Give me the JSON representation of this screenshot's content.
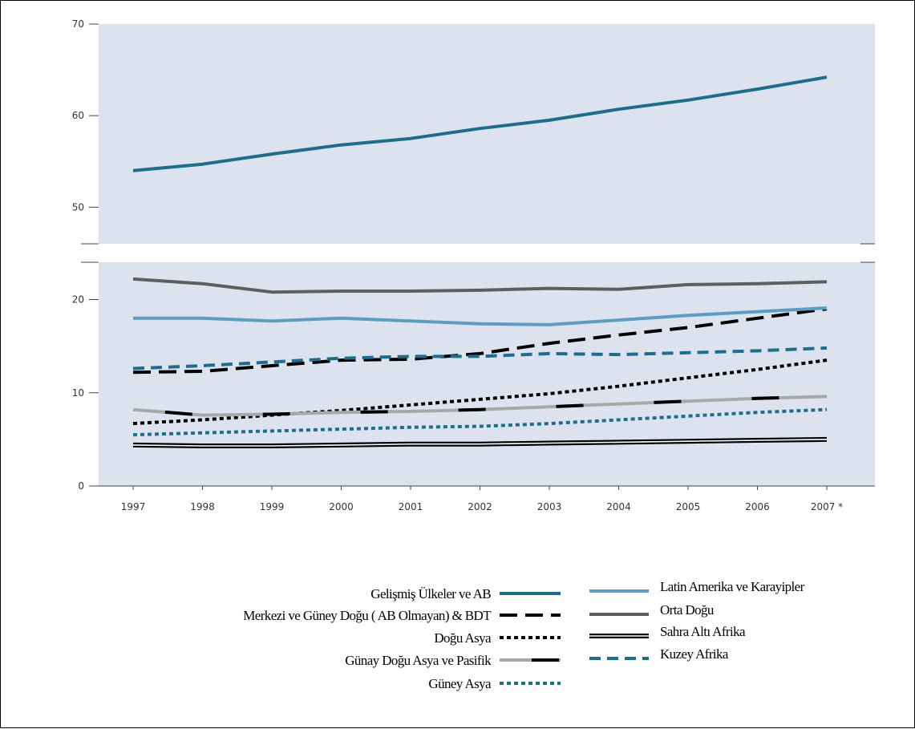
{
  "chart_data": {
    "type": "line",
    "x": [
      "1997",
      "1998",
      "1999",
      "2000",
      "2001",
      "2002",
      "2003",
      "2004",
      "2005",
      "2006",
      "2007 *"
    ],
    "yticks": [
      0,
      10,
      20,
      50,
      60,
      70
    ],
    "ylim_lower": [
      0,
      24
    ],
    "ylim_upper": [
      46,
      70
    ],
    "axis_break": true,
    "grid": false,
    "background": "#dde3ee",
    "legend_position": "bottom",
    "series": [
      {
        "name": "Gelişmiş Ülkeler ve AB",
        "color": "#1b6e8c",
        "style": "solid",
        "values": [
          54.0,
          54.7,
          55.8,
          56.8,
          57.5,
          58.6,
          59.5,
          60.7,
          61.7,
          62.9,
          64.2
        ]
      },
      {
        "name": "Merkezi ve Güney Doğu ( AB Olmayan) & BDT",
        "color": "#000000",
        "style": "long-dash",
        "values": [
          12.2,
          12.3,
          12.9,
          13.5,
          13.6,
          14.2,
          15.3,
          16.2,
          17.0,
          18.0,
          19.0
        ]
      },
      {
        "name": "Doğu Asya",
        "color": "#000000",
        "style": "dotted",
        "values": [
          6.7,
          7.1,
          7.6,
          8.1,
          8.7,
          9.3,
          9.9,
          10.7,
          11.6,
          12.5,
          13.5
        ]
      },
      {
        "name": "Günay Doğu Asya ve Pasifik",
        "color": "#a8a8a8",
        "style": "gray-black-segment",
        "values": [
          8.2,
          7.6,
          7.7,
          7.9,
          8.0,
          8.2,
          8.5,
          8.8,
          9.1,
          9.4,
          9.6
        ]
      },
      {
        "name": "Güney Asya",
        "color": "#1b6e8c",
        "style": "dotted",
        "values": [
          5.5,
          5.7,
          5.9,
          6.1,
          6.3,
          6.4,
          6.7,
          7.1,
          7.5,
          7.9,
          8.2
        ]
      },
      {
        "name": "Latin Amerika ve Karayipler",
        "color": "#5b9ec4",
        "style": "solid",
        "values": [
          18.0,
          18.0,
          17.7,
          18.0,
          17.7,
          17.4,
          17.3,
          17.8,
          18.3,
          18.7,
          19.1
        ]
      },
      {
        "name": "Orta Doğu",
        "color": "#5e5e5e",
        "style": "solid",
        "values": [
          22.2,
          21.7,
          20.8,
          20.9,
          20.9,
          21.0,
          21.2,
          21.1,
          21.6,
          21.7,
          21.9
        ]
      },
      {
        "name": "Sahra Altı Afrika",
        "color": "#000000",
        "style": "double",
        "values": [
          4.4,
          4.3,
          4.3,
          4.4,
          4.5,
          4.5,
          4.6,
          4.7,
          4.8,
          4.9,
          5.0
        ]
      },
      {
        "name": "Kuzey Afrika",
        "color": "#1b6e8c",
        "style": "dashed",
        "values": [
          12.6,
          12.9,
          13.3,
          13.7,
          13.9,
          13.9,
          14.2,
          14.1,
          14.3,
          14.5,
          14.8
        ]
      }
    ]
  }
}
